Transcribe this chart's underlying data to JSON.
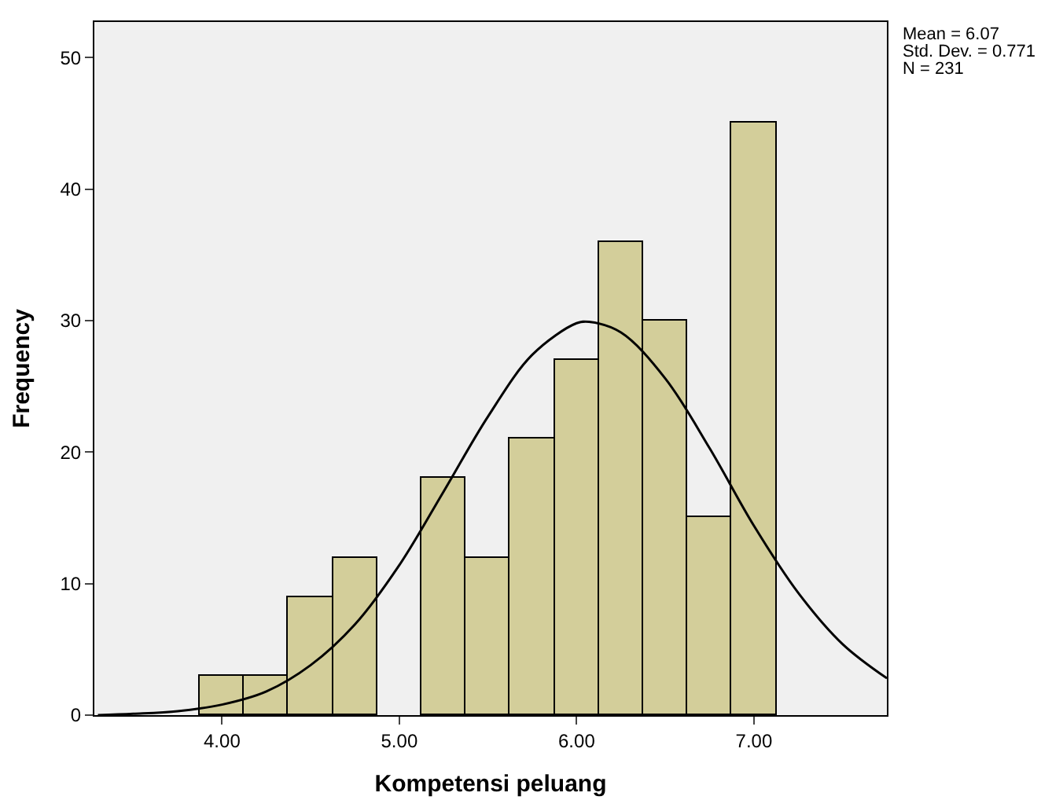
{
  "chart_data": {
    "type": "histogram",
    "xlabel": "Kompetensi peluang",
    "ylabel": "Frequency",
    "xlim": [
      3.28,
      7.75
    ],
    "ylim": [
      0,
      52.7
    ],
    "xticks": [
      {
        "value": 4,
        "label": "4.00"
      },
      {
        "value": 5,
        "label": "5.00"
      },
      {
        "value": 6,
        "label": "6.00"
      },
      {
        "value": 7,
        "label": "7.00"
      }
    ],
    "yticks": [
      0,
      10,
      20,
      30,
      40,
      50
    ],
    "grid": false,
    "series": [
      {
        "color": "#d3ce9a",
        "bins": [
          3.875,
          4.125,
          4.375,
          4.625,
          4.875,
          5.125,
          5.375,
          5.625,
          5.875,
          6.125,
          6.375,
          6.625,
          6.875,
          7.125
        ],
        "values": [
          3,
          3,
          9,
          12,
          0,
          18,
          12,
          21,
          27,
          36,
          30,
          15,
          45
        ]
      },
      {
        "type": "line",
        "color": "#000000",
        "x": [
          3.3,
          3.5,
          3.75,
          4.0,
          4.25,
          4.5,
          4.75,
          5.0,
          5.25,
          5.5,
          5.75,
          6.0,
          6.07,
          6.25,
          6.5,
          6.75,
          7.0,
          7.25,
          7.5,
          7.75
        ],
        "values": [
          0.0,
          0.1,
          0.3,
          0.8,
          1.8,
          3.8,
          6.9,
          11.4,
          17.0,
          22.7,
          27.4,
          29.8,
          29.9,
          29.1,
          25.6,
          20.3,
          14.4,
          9.3,
          5.4,
          2.8
        ]
      }
    ],
    "annotations": [
      "Mean = 6.07",
      "Std. Dev. = 0.771",
      "N = 231"
    ]
  }
}
